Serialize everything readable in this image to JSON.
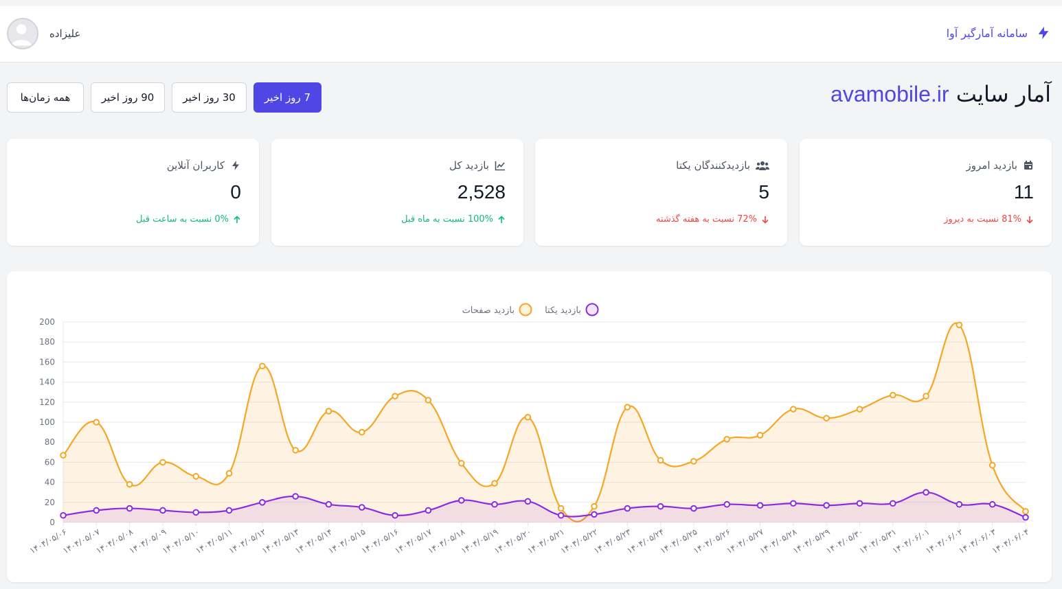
{
  "navbar": {
    "brand_title": "سامانه آمارگیر آوا",
    "user_name": "علیزاده"
  },
  "page": {
    "title_prefix": "آمار سایت",
    "site_domain": "avamobile.ir"
  },
  "filters": [
    {
      "label": "7 روز اخیر",
      "active": true
    },
    {
      "label": "30 روز اخیر",
      "active": false
    },
    {
      "label": "90 روز اخیر",
      "active": false
    },
    {
      "label": "همه زمان‌ها",
      "active": false
    }
  ],
  "cards": [
    {
      "title": "بازدید امروز",
      "icon": "calendar-icon",
      "value": "11",
      "trend_dir": "down",
      "trend_text": "81% نسبت به دیروز"
    },
    {
      "title": "بازدیدکنندگان یکتا",
      "icon": "users-icon",
      "value": "5",
      "trend_dir": "down",
      "trend_text": "72% نسبت به هفته گذشته"
    },
    {
      "title": "بازدید کل",
      "icon": "chart-line-icon",
      "value": "2,528",
      "trend_dir": "up",
      "trend_text": "100% نسبت به ماه قبل"
    },
    {
      "title": "کاربران آنلاین",
      "icon": "bolt-icon",
      "value": "0",
      "trend_dir": "up",
      "trend_text": "0% نسبت به ساعت قبل"
    }
  ],
  "colors": {
    "accent": "#4f46e5",
    "page_views_line": "#f5a623",
    "unique_line": "#8a2be2",
    "up": "#10b981",
    "down": "#ef4444"
  },
  "chart_data": {
    "type": "area",
    "x": [
      "۱۴۰۴/۰۵/۰۶",
      "۱۴۰۴/۰۵/۰۷",
      "۱۴۰۴/۰۵/۰۸",
      "۱۴۰۴/۰۵/۰۹",
      "۱۴۰۴/۰۵/۱۰",
      "۱۴۰۴/۰۵/۱۱",
      "۱۴۰۴/۰۵/۱۲",
      "۱۴۰۴/۰۵/۱۳",
      "۱۴۰۴/۰۵/۱۴",
      "۱۴۰۴/۰۵/۱۵",
      "۱۴۰۴/۰۵/۱۶",
      "۱۴۰۴/۰۵/۱۷",
      "۱۴۰۴/۰۵/۱۸",
      "۱۴۰۴/۰۵/۱۹",
      "۱۴۰۴/۰۵/۲۰",
      "۱۴۰۴/۰۵/۲۱",
      "۱۴۰۴/۰۵/۲۲",
      "۱۴۰۴/۰۵/۲۳",
      "۱۴۰۴/۰۵/۲۴",
      "۱۴۰۴/۰۵/۲۵",
      "۱۴۰۴/۰۵/۲۶",
      "۱۴۰۴/۰۵/۲۷",
      "۱۴۰۴/۰۵/۲۸",
      "۱۴۰۴/۰۵/۲۹",
      "۱۴۰۴/۰۵/۳۰",
      "۱۴۰۴/۰۵/۳۱",
      "۱۴۰۴/۰۶/۰۱",
      "۱۴۰۴/۰۶/۰۲",
      "۱۴۰۴/۰۶/۰۳",
      "۱۴۰۴/۰۶/۰۴"
    ],
    "series": [
      {
        "name": "بازدید صفحات",
        "values": [
          67,
          100,
          38,
          60,
          46,
          49,
          156,
          72,
          111,
          90,
          126,
          122,
          59,
          39,
          105,
          14,
          16,
          115,
          62,
          61,
          83,
          87,
          113,
          104,
          113,
          127,
          126,
          197,
          57,
          11
        ]
      },
      {
        "name": "بازدید یکتا",
        "values": [
          7,
          12,
          14,
          12,
          10,
          12,
          20,
          26,
          18,
          15,
          7,
          12,
          22,
          18,
          21,
          7,
          8,
          14,
          16,
          14,
          18,
          17,
          19,
          17,
          19,
          19,
          30,
          18,
          18,
          5
        ]
      }
    ],
    "legend": [
      "بازدید یکتا",
      "بازدید صفحات"
    ],
    "legend_position": "top",
    "ylim": [
      0,
      200
    ],
    "yticks": [
      0,
      20,
      40,
      60,
      80,
      100,
      120,
      140,
      160,
      180,
      200
    ],
    "grid": true
  }
}
